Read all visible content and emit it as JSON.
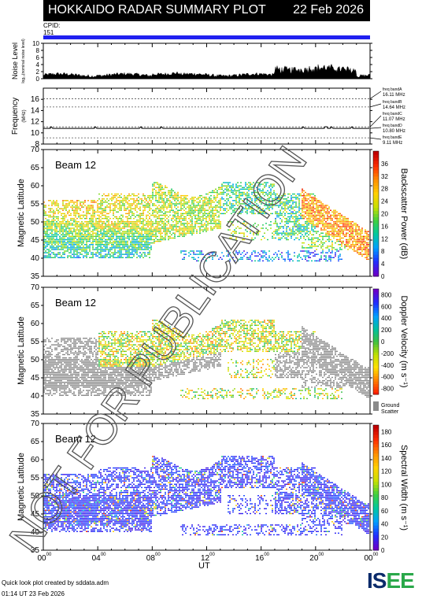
{
  "header": {
    "title": "HOKKAIDO RADAR SUMMARY PLOT",
    "date": "22 Feb 2026"
  },
  "cpid": {
    "label": "CPID:",
    "value": "151",
    "bar_color": "#2020f0"
  },
  "watermark": "NOT FOR PUBLICATION",
  "footer": {
    "line1": "Quick look plot created by sddata.adm",
    "line2": "01:14 UT 23 Feb 2026"
  },
  "logo": {
    "text_main": "IS",
    "text_accent": "EE"
  },
  "chart_data": [
    {
      "type": "area",
      "name": "noise",
      "ylabel": "Noise Level",
      "ylabel_sub": "log₁₀(nominal noise level)",
      "ylim": [
        0,
        10
      ],
      "yticks": [
        0,
        2,
        4,
        6,
        8,
        10
      ]
    },
    {
      "type": "line",
      "name": "frequency",
      "ylabel": "Frequency",
      "ylabel_unit": "(MHz)",
      "ylim": [
        8,
        18
      ],
      "yticks": [
        8,
        10,
        12,
        14,
        16
      ],
      "bands": [
        {
          "label": "freq bandA",
          "value": 16.11,
          "text": "16.11 MHz"
        },
        {
          "label": "freq bandB",
          "value": 14.64,
          "text": "14.64 MHz"
        },
        {
          "label": "freq bandC",
          "value": 11.07,
          "text": "11.07 MHz"
        },
        {
          "label": "freq bandD",
          "value": 10.8,
          "text": "10.80 MHz"
        },
        {
          "label": "freq bandE",
          "value": 9.11,
          "text": "9.11 MHz"
        }
      ]
    },
    {
      "type": "heatmap",
      "name": "power",
      "beam": "Beam 12",
      "ylabel": "Magnetic Latitude",
      "ylim": [
        35,
        70
      ],
      "yticks": [
        35,
        40,
        45,
        50,
        55,
        60,
        65,
        70
      ],
      "colorbar": {
        "label": "Backscatter Power (dB)",
        "ticks": [
          0,
          4,
          8,
          12,
          16,
          20,
          24,
          28,
          32,
          36
        ],
        "range": [
          0,
          40
        ]
      }
    },
    {
      "type": "heatmap",
      "name": "velocity",
      "beam": "Beam 12",
      "ylabel": "Magnetic Latitude",
      "ylim": [
        35,
        70
      ],
      "yticks": [
        35,
        40,
        45,
        50,
        55,
        60,
        65,
        70
      ],
      "colorbar": {
        "label": "Doppler Velocity (m s⁻¹)",
        "ticks": [
          -800,
          -600,
          -400,
          -200,
          0,
          200,
          400,
          600,
          800
        ],
        "range": [
          -900,
          900
        ]
      },
      "ground_scatter_label": "Ground Scatter"
    },
    {
      "type": "heatmap",
      "name": "width",
      "beam": "Beam 12",
      "ylabel": "Magnetic Latitude",
      "ylim": [
        35,
        70
      ],
      "yticks": [
        35,
        40,
        45,
        50,
        55,
        60,
        65,
        70
      ],
      "colorbar": {
        "label": "Spectral Width (m s⁻¹)",
        "ticks": [
          0,
          20,
          40,
          60,
          80,
          100,
          120,
          140,
          160,
          180
        ],
        "range": [
          0,
          190
        ]
      }
    }
  ],
  "xaxis": {
    "label": "UT",
    "range": [
      0,
      24
    ],
    "major_ticks": [
      0,
      4,
      8,
      12,
      16,
      20,
      24
    ],
    "tick_labels": [
      "00",
      "04",
      "08",
      "12",
      "16",
      "20",
      "00"
    ],
    "tick_suffix": "00"
  }
}
